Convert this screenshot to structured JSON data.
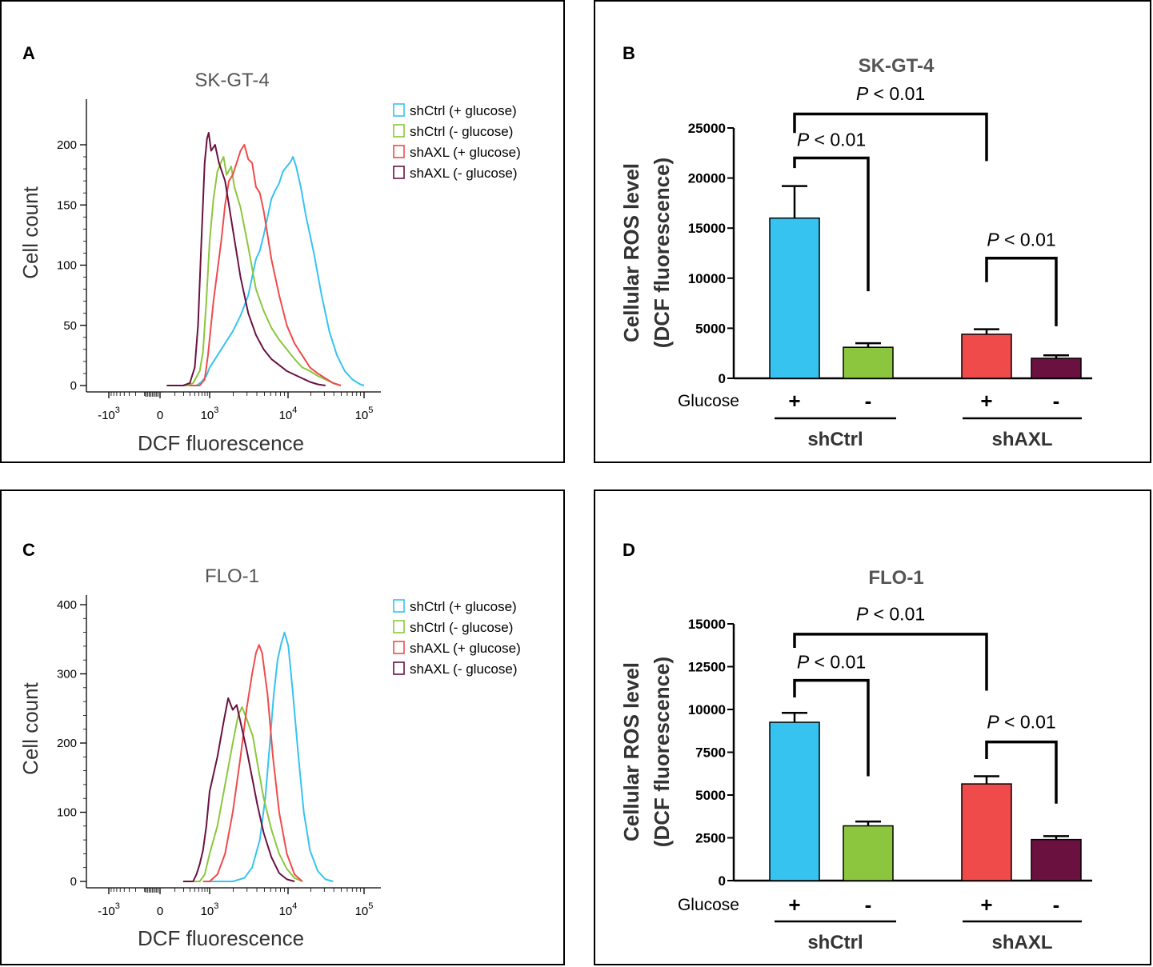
{
  "colors": {
    "shCtrl_plus": "#37c3f0",
    "shCtrl_minus": "#8cc63f",
    "shAXL_plus": "#ef4b4b",
    "shAXL_minus": "#6a1140",
    "frame": "#000000",
    "title": "#555555"
  },
  "chart_data": [
    {
      "id": "A",
      "type": "line",
      "panel_label": "A",
      "title": "SK-GT-4",
      "xlabel": "DCF fluorescence",
      "ylabel": "Cell count",
      "x_scale": "logicle",
      "x_ticks": [
        {
          "base": "-10",
          "exp": "3",
          "value": -1000
        },
        {
          "base": "0",
          "exp": "",
          "value": 0
        },
        {
          "base": "10",
          "exp": "3",
          "value": 1000
        },
        {
          "base": "10",
          "exp": "4",
          "value": 10000
        },
        {
          "base": "10",
          "exp": "5",
          "value": 100000
        }
      ],
      "y_ticks": [
        "0",
        "50",
        "100",
        "150",
        "200"
      ],
      "ylim": [
        0,
        240
      ],
      "legend_position": "top-right",
      "series": [
        {
          "name": "shCtrl (+ glucose)",
          "color": "#37c3f0",
          "points": [
            [
              2.0,
              0
            ],
            [
              2.3,
              0
            ],
            [
              2.6,
              0
            ],
            [
              2.75,
              3
            ],
            [
              2.9,
              8
            ],
            [
              3.0,
              15
            ],
            [
              3.1,
              25
            ],
            [
              3.2,
              35
            ],
            [
              3.3,
              45
            ],
            [
              3.4,
              58
            ],
            [
              3.5,
              75
            ],
            [
              3.55,
              90
            ],
            [
              3.6,
              105
            ],
            [
              3.65,
              112
            ],
            [
              3.7,
              125
            ],
            [
              3.75,
              140
            ],
            [
              3.8,
              155
            ],
            [
              3.85,
              162
            ],
            [
              3.9,
              168
            ],
            [
              3.95,
              178
            ],
            [
              4.0,
              182
            ],
            [
              4.05,
              186
            ],
            [
              4.08,
              190
            ],
            [
              4.12,
              182
            ],
            [
              4.18,
              165
            ],
            [
              4.25,
              140
            ],
            [
              4.35,
              110
            ],
            [
              4.45,
              75
            ],
            [
              4.55,
              45
            ],
            [
              4.65,
              25
            ],
            [
              4.75,
              12
            ],
            [
              4.85,
              5
            ],
            [
              4.95,
              1
            ],
            [
              5.0,
              0
            ]
          ]
        },
        {
          "name": "shCtrl (- glucose)",
          "color": "#8cc63f",
          "points": [
            [
              1.9,
              0
            ],
            [
              2.3,
              0
            ],
            [
              2.5,
              2
            ],
            [
              2.7,
              12
            ],
            [
              2.8,
              28
            ],
            [
              2.9,
              70
            ],
            [
              3.0,
              120
            ],
            [
              3.05,
              155
            ],
            [
              3.1,
              178
            ],
            [
              3.15,
              186
            ],
            [
              3.18,
              190
            ],
            [
              3.22,
              175
            ],
            [
              3.28,
              182
            ],
            [
              3.32,
              165
            ],
            [
              3.4,
              148
            ],
            [
              3.5,
              115
            ],
            [
              3.6,
              80
            ],
            [
              3.7,
              62
            ],
            [
              3.8,
              48
            ],
            [
              3.9,
              38
            ],
            [
              4.0,
              30
            ],
            [
              4.1,
              22
            ],
            [
              4.2,
              15
            ],
            [
              4.3,
              12
            ],
            [
              4.4,
              8
            ],
            [
              4.5,
              5
            ],
            [
              4.6,
              2
            ],
            [
              4.7,
              0
            ]
          ]
        },
        {
          "name": "shAXL (+ glucose)",
          "color": "#ef4b4b",
          "points": [
            [
              2.4,
              0
            ],
            [
              2.7,
              0
            ],
            [
              2.85,
              5
            ],
            [
              2.95,
              25
            ],
            [
              3.05,
              70
            ],
            [
              3.15,
              120
            ],
            [
              3.2,
              150
            ],
            [
              3.25,
              170
            ],
            [
              3.3,
              175
            ],
            [
              3.35,
              185
            ],
            [
              3.4,
              195
            ],
            [
              3.45,
              200
            ],
            [
              3.5,
              188
            ],
            [
              3.55,
              185
            ],
            [
              3.6,
              165
            ],
            [
              3.65,
              160
            ],
            [
              3.7,
              145
            ],
            [
              3.8,
              105
            ],
            [
              3.9,
              75
            ],
            [
              4.0,
              50
            ],
            [
              4.1,
              35
            ],
            [
              4.2,
              25
            ],
            [
              4.3,
              15
            ],
            [
              4.4,
              10
            ],
            [
              4.5,
              6
            ],
            [
              4.6,
              2
            ],
            [
              4.7,
              0
            ]
          ]
        },
        {
          "name": "shAXL (- glucose)",
          "color": "#6a1140",
          "points": [
            [
              1.7,
              0
            ],
            [
              2.2,
              0
            ],
            [
              2.4,
              2
            ],
            [
              2.55,
              15
            ],
            [
              2.65,
              50
            ],
            [
              2.75,
              120
            ],
            [
              2.85,
              185
            ],
            [
              2.92,
              205
            ],
            [
              2.97,
              210
            ],
            [
              3.02,
              195
            ],
            [
              3.07,
              200
            ],
            [
              3.12,
              185
            ],
            [
              3.2,
              170
            ],
            [
              3.3,
              130
            ],
            [
              3.4,
              90
            ],
            [
              3.5,
              60
            ],
            [
              3.6,
              42
            ],
            [
              3.7,
              30
            ],
            [
              3.8,
              22
            ],
            [
              3.9,
              17
            ],
            [
              4.0,
              12
            ],
            [
              4.1,
              9
            ],
            [
              4.2,
              6
            ],
            [
              4.3,
              3
            ],
            [
              4.4,
              1
            ],
            [
              4.5,
              0
            ]
          ]
        }
      ]
    },
    {
      "id": "B",
      "type": "bar",
      "panel_label": "B",
      "title": "SK-GT-4",
      "ylabel_line1": "Cellular ROS level",
      "ylabel_line2": "(DCF fluorescence)",
      "y_ticks": [
        0,
        5000,
        10000,
        15000,
        20000,
        25000
      ],
      "ylim": [
        0,
        25000
      ],
      "glucose_label": "Glucose",
      "groups": [
        "shCtrl",
        "shAXL"
      ],
      "bars": [
        {
          "group": "shCtrl",
          "glucose": "+",
          "value": 16000,
          "error": 3200,
          "color": "#37c3f0"
        },
        {
          "group": "shCtrl",
          "glucose": "-",
          "value": 3100,
          "error": 400,
          "color": "#8cc63f"
        },
        {
          "group": "shAXL",
          "glucose": "+",
          "value": 4400,
          "error": 500,
          "color": "#ef4b4b"
        },
        {
          "group": "shAXL",
          "glucose": "-",
          "value": 2000,
          "error": 300,
          "color": "#6a1140"
        }
      ],
      "significance": [
        {
          "from": 0,
          "to": 1,
          "label": "P < 0.01",
          "p": "P",
          "rest": " < 0.01",
          "y": 22000,
          "left_end": 21000,
          "right_end": 8700,
          "label_y": 23200
        },
        {
          "from": 0,
          "to": 2,
          "label": "P < 0.01",
          "p": "P",
          "rest": " < 0.01",
          "y": 26400,
          "left_end": 24500,
          "right_end": 21700,
          "label_y": 27800
        },
        {
          "from": 2,
          "to": 3,
          "label": "P < 0.01",
          "p": "P",
          "rest": " < 0.01",
          "y": 12000,
          "left_end": 9600,
          "right_end": 5200,
          "label_y": 13200
        }
      ]
    },
    {
      "id": "C",
      "type": "line",
      "panel_label": "C",
      "title": "FLO-1",
      "xlabel": "DCF fluorescence",
      "ylabel": "Cell count",
      "x_scale": "logicle",
      "x_ticks": [
        {
          "base": "-10",
          "exp": "3",
          "value": -1000
        },
        {
          "base": "0",
          "exp": "",
          "value": 0
        },
        {
          "base": "10",
          "exp": "3",
          "value": 1000
        },
        {
          "base": "10",
          "exp": "4",
          "value": 10000
        },
        {
          "base": "10",
          "exp": "5",
          "value": 100000
        }
      ],
      "y_ticks": [
        "0",
        "100",
        "200",
        "300",
        "400"
      ],
      "ylim": [
        0,
        410
      ],
      "legend_position": "top-right",
      "series": [
        {
          "name": "shCtrl (+ glucose)",
          "color": "#37c3f0",
          "points": [
            [
              2.8,
              0
            ],
            [
              3.3,
              0
            ],
            [
              3.45,
              5
            ],
            [
              3.55,
              20
            ],
            [
              3.65,
              60
            ],
            [
              3.72,
              120
            ],
            [
              3.78,
              200
            ],
            [
              3.83,
              270
            ],
            [
              3.88,
              320
            ],
            [
              3.93,
              345
            ],
            [
              3.97,
              360
            ],
            [
              4.02,
              340
            ],
            [
              4.08,
              270
            ],
            [
              4.15,
              180
            ],
            [
              4.22,
              100
            ],
            [
              4.3,
              45
            ],
            [
              4.4,
              15
            ],
            [
              4.5,
              3
            ],
            [
              4.6,
              0
            ]
          ]
        },
        {
          "name": "shCtrl (- glucose)",
          "color": "#8cc63f",
          "points": [
            [
              2.4,
              0
            ],
            [
              2.7,
              0
            ],
            [
              2.85,
              10
            ],
            [
              3.0,
              40
            ],
            [
              3.1,
              80
            ],
            [
              3.2,
              140
            ],
            [
              3.3,
              200
            ],
            [
              3.37,
              240
            ],
            [
              3.42,
              252
            ],
            [
              3.48,
              235
            ],
            [
              3.52,
              222
            ],
            [
              3.56,
              210
            ],
            [
              3.62,
              170
            ],
            [
              3.7,
              120
            ],
            [
              3.8,
              75
            ],
            [
              3.9,
              40
            ],
            [
              4.0,
              18
            ],
            [
              4.1,
              5
            ],
            [
              4.2,
              0
            ]
          ]
        },
        {
          "name": "shAXL (+ glucose)",
          "color": "#ef4b4b",
          "points": [
            [
              2.8,
              0
            ],
            [
              3.0,
              0
            ],
            [
              3.1,
              10
            ],
            [
              3.2,
              40
            ],
            [
              3.3,
              100
            ],
            [
              3.4,
              180
            ],
            [
              3.48,
              250
            ],
            [
              3.55,
              300
            ],
            [
              3.6,
              330
            ],
            [
              3.64,
              342
            ],
            [
              3.68,
              330
            ],
            [
              3.75,
              270
            ],
            [
              3.82,
              180
            ],
            [
              3.9,
              100
            ],
            [
              4.0,
              40
            ],
            [
              4.1,
              10
            ],
            [
              4.2,
              0
            ]
          ]
        },
        {
          "name": "shAXL (- glucose)",
          "color": "#6a1140",
          "points": [
            [
              2.2,
              0
            ],
            [
              2.5,
              0
            ],
            [
              2.6,
              10
            ],
            [
              2.7,
              25
            ],
            [
              2.8,
              45
            ],
            [
              2.9,
              80
            ],
            [
              3.0,
              130
            ],
            [
              3.1,
              180
            ],
            [
              3.18,
              230
            ],
            [
              3.24,
              265
            ],
            [
              3.3,
              248
            ],
            [
              3.35,
              255
            ],
            [
              3.4,
              230
            ],
            [
              3.48,
              190
            ],
            [
              3.55,
              150
            ],
            [
              3.62,
              110
            ],
            [
              3.7,
              70
            ],
            [
              3.8,
              35
            ],
            [
              3.9,
              12
            ],
            [
              4.0,
              3
            ],
            [
              4.1,
              0
            ]
          ]
        }
      ]
    },
    {
      "id": "D",
      "type": "bar",
      "panel_label": "D",
      "title": "FLO-1",
      "ylabel_line1": "Cellular ROS level",
      "ylabel_line2": "(DCF fluorescence)",
      "y_ticks": [
        0,
        2500,
        5000,
        7500,
        10000,
        12500,
        15000
      ],
      "ylim": [
        0,
        15000
      ],
      "glucose_label": "Glucose",
      "groups": [
        "shCtrl",
        "shAXL"
      ],
      "bars": [
        {
          "group": "shCtrl",
          "glucose": "+",
          "value": 9250,
          "error": 550,
          "color": "#37c3f0"
        },
        {
          "group": "shCtrl",
          "glucose": "-",
          "value": 3200,
          "error": 250,
          "color": "#8cc63f"
        },
        {
          "group": "shAXL",
          "glucose": "+",
          "value": 5650,
          "error": 450,
          "color": "#ef4b4b"
        },
        {
          "group": "shAXL",
          "glucose": "-",
          "value": 2400,
          "error": 200,
          "color": "#6a1140"
        }
      ],
      "significance": [
        {
          "from": 0,
          "to": 1,
          "label": "P < 0.01",
          "p": "P",
          "rest": " < 0.01",
          "y": 11700,
          "left_end": 10700,
          "right_end": 6100,
          "label_y": 12400
        },
        {
          "from": 0,
          "to": 2,
          "label": "P < 0.01",
          "p": "P",
          "rest": " < 0.01",
          "y": 14400,
          "left_end": 13600,
          "right_end": 11100,
          "label_y": 15200
        },
        {
          "from": 2,
          "to": 3,
          "label": "P < 0.01",
          "p": "P",
          "rest": " < 0.01",
          "y": 8100,
          "left_end": 7100,
          "right_end": 4500,
          "label_y": 8900
        }
      ]
    }
  ]
}
